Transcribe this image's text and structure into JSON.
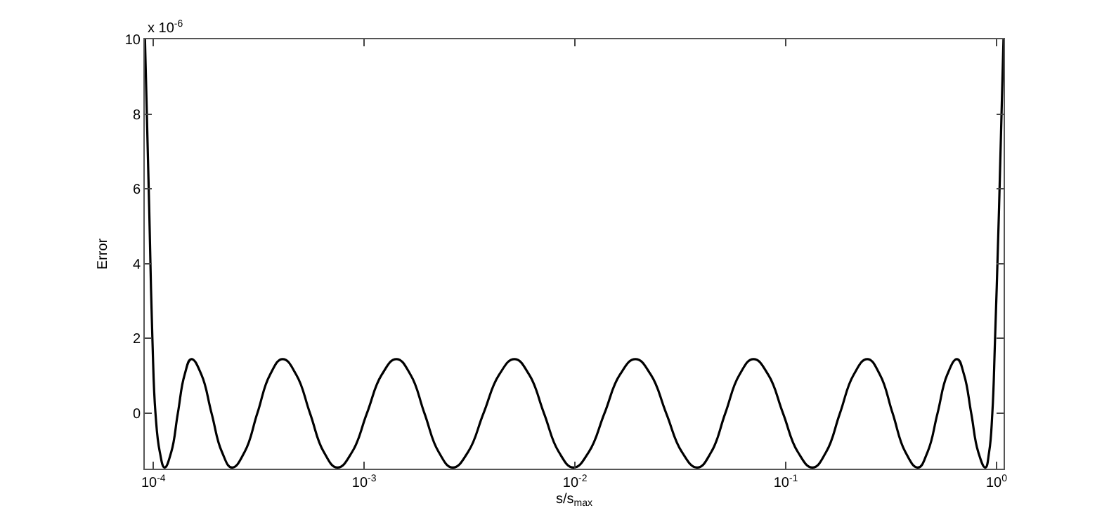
{
  "chart_data": {
    "type": "line",
    "xlabel": "s/s$_{max}$",
    "ylabel": "Error",
    "annotations": [
      "x 10$^{-6}$"
    ],
    "log": "x",
    "grid": false,
    "xlim": [
      9.1e-05,
      1.08
    ],
    "ylim": [
      -1.48,
      10
    ],
    "xticks": [
      {
        "value": 0.0001,
        "label": "10$^{-4}$"
      },
      {
        "value": 0.001,
        "label": "10$^{-3}$"
      },
      {
        "value": 0.01,
        "label": "10$^{-2}$"
      },
      {
        "value": 0.1,
        "label": "10$^{-1}$"
      },
      {
        "value": 1,
        "label": "10$^{0}$"
      }
    ],
    "yticks": [
      0,
      2,
      4,
      6,
      8,
      10
    ],
    "series": [
      {
        "color": "#000000",
        "x": [
          9.12e-05,
          9.55e-05,
          9.89e-05,
          0.0001023,
          0.0001072,
          0.000113,
          0.0001216,
          0.0001306,
          0.0001406,
          0.0001514,
          0.000169,
          0.0001888,
          0.0002113,
          0.000236,
          0.000271,
          0.0003112,
          0.0003573,
          0.0004102,
          0.0004764,
          0.0005534,
          0.0006427,
          0.0007464,
          0.000877,
          0.00103,
          0.001211,
          0.001422,
          0.00166,
          0.001932,
          0.002254,
          0.00263,
          0.003112,
          0.003681,
          0.004365,
          0.005164,
          0.006067,
          0.007129,
          0.008375,
          0.00984,
          0.01164,
          0.0138,
          0.01633,
          0.01936,
          0.02291,
          0.0271,
          0.03214,
          0.03802,
          0.04436,
          0.05164,
          0.06026,
          0.07031,
          0.0826,
          0.09705,
          0.114,
          0.134,
          0.1556,
          0.1807,
          0.2099,
          0.2438,
          0.2799,
          0.3214,
          0.369,
          0.4236,
          0.471,
          0.5248,
          0.5834,
          0.6501,
          0.7015,
          0.7586,
          0.8185,
          0.8851,
          0.9226,
          0.955,
          0.984,
          1.028,
          1.079
        ],
        "values": [
          10,
          5.5,
          2,
          0,
          -1.03,
          -1.45,
          -1.03,
          0,
          1.03,
          1.45,
          1.03,
          0,
          -1.03,
          -1.45,
          -1.03,
          0,
          1.03,
          1.45,
          1.03,
          0,
          -1.03,
          -1.45,
          -1.03,
          0,
          1.03,
          1.45,
          1.03,
          0,
          -1.03,
          -1.45,
          -1.03,
          0,
          1.03,
          1.45,
          1.03,
          0,
          -1.03,
          -1.45,
          -1.03,
          0,
          1.03,
          1.45,
          1.03,
          0,
          -1.03,
          -1.45,
          -1.03,
          0,
          1.03,
          1.45,
          1.03,
          0,
          -1.03,
          -1.45,
          -1.03,
          0,
          1.03,
          1.45,
          1.03,
          0,
          -1.03,
          -1.45,
          -1.03,
          0,
          1.03,
          1.45,
          1.03,
          0,
          -1.03,
          -1.45,
          -1.03,
          0,
          2,
          5.5,
          10
        ]
      }
    ]
  }
}
